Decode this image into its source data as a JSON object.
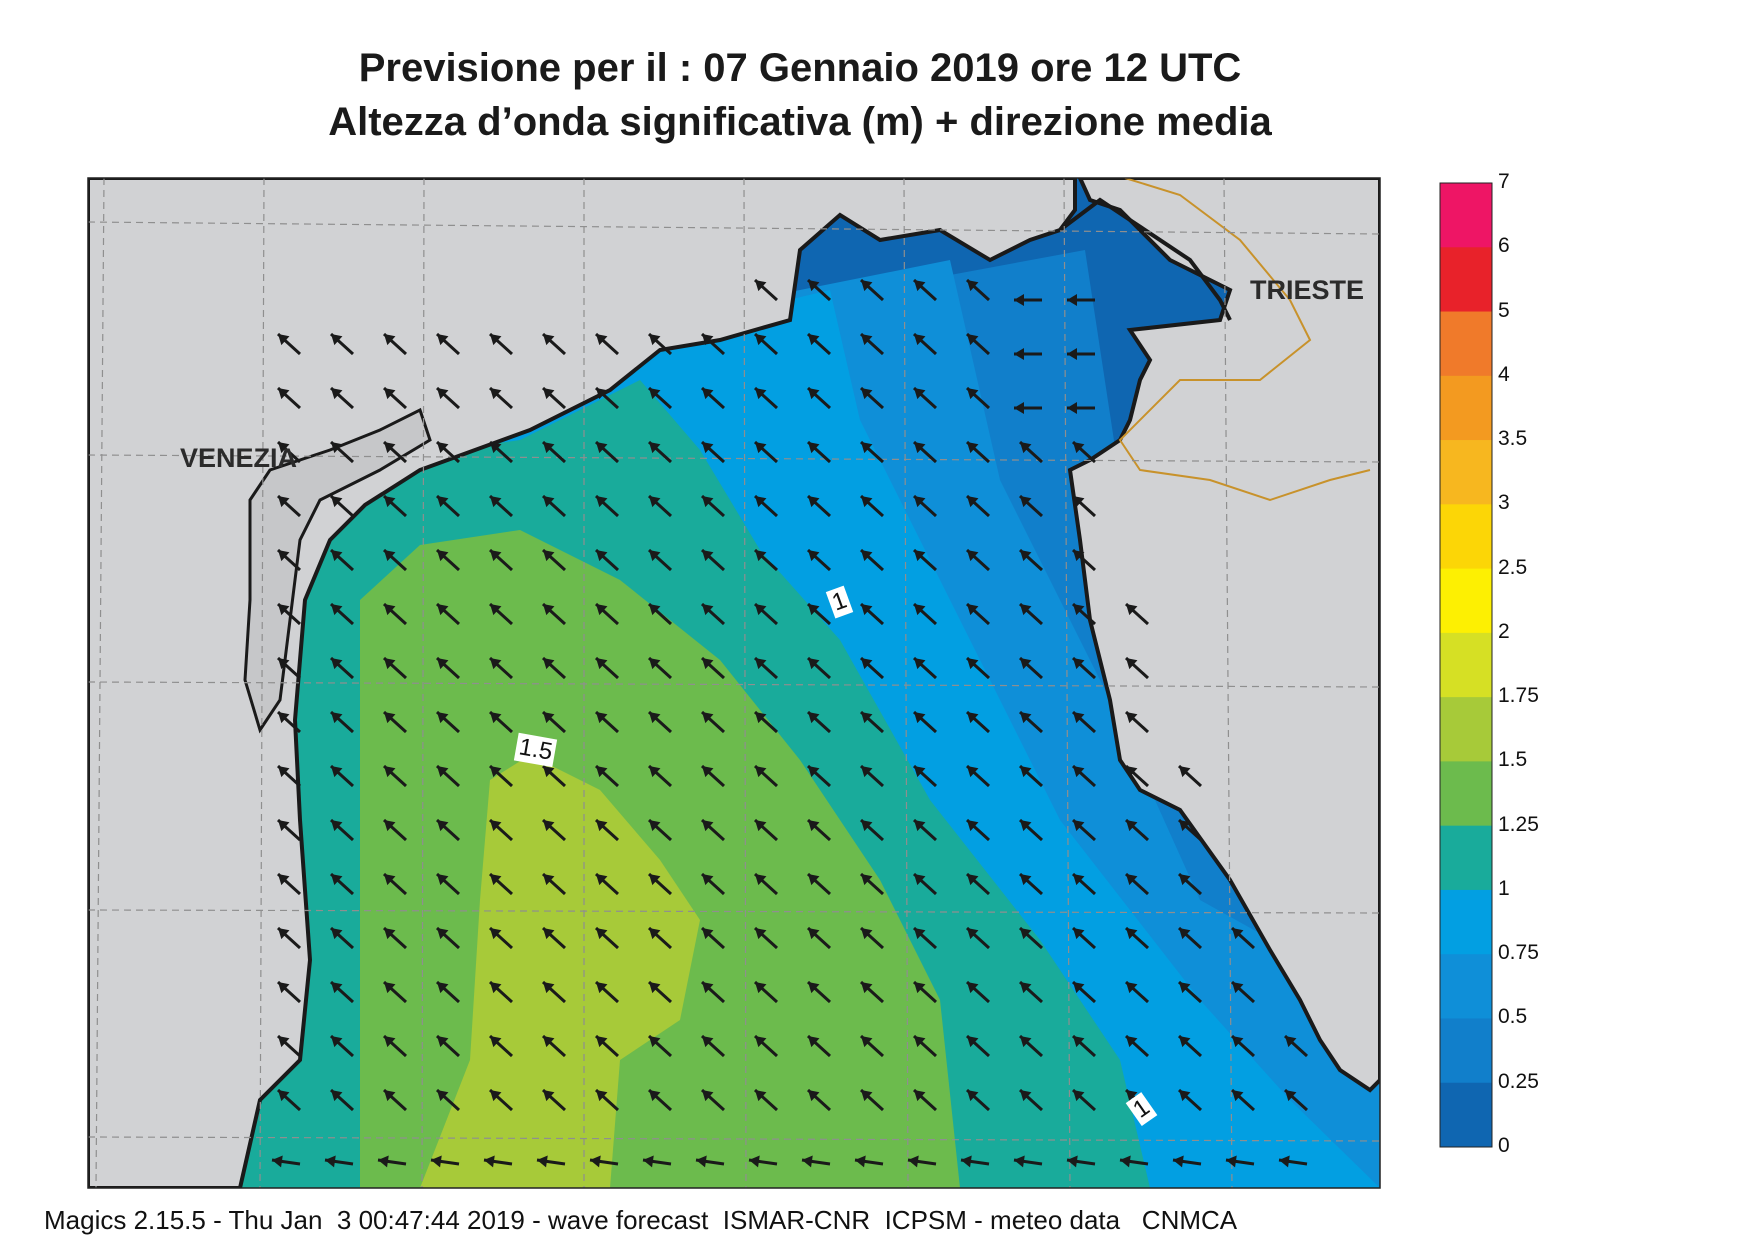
{
  "title": {
    "line1": "Previsione per il  :  07  Gennaio  2019   ore 12 UTC",
    "line2": "Altezza d’onda significativa (m) + direzione media"
  },
  "cities": {
    "venezia": "VENEZIA",
    "trieste": "TRIESTE"
  },
  "contour_labels": {
    "c1": "1",
    "c15": "1.5",
    "c1b": "1"
  },
  "colorbar": {
    "labels": [
      "7",
      "6",
      "5",
      "4",
      "3.5",
      "3",
      "2.5",
      "2",
      "1.75",
      "1.5",
      "1.25",
      "1",
      "0.75",
      "0.5",
      "0.25",
      "0"
    ],
    "colors": [
      "#ee1565",
      "#e8222a",
      "#f07a2a",
      "#f39a20",
      "#f7b71f",
      "#fcd606",
      "#fdf002",
      "#d6e024",
      "#a7ca39",
      "#6cbb4d",
      "#19ab9b",
      "#029fe2",
      "#0f8fd8",
      "#117fcb",
      "#0f66b1"
    ]
  },
  "footer": "Magics 2.15.5 - Thu Jan  3 00:47:44 2019 - wave forecast  ISMAR-CNR  ICPSM - meteo data   CNMCA"
}
